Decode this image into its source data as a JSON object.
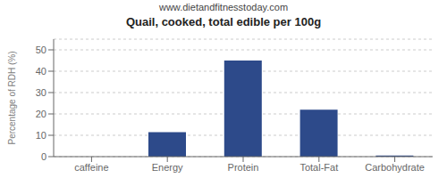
{
  "chart_data": {
    "type": "bar",
    "title": "Quail, cooked, total edible per 100g",
    "subtitle": "www.dietandfitnesstoday.com",
    "categories": [
      "caffeine",
      "Energy",
      "Protein",
      "Total-Fat",
      "Carbohydrate"
    ],
    "values": [
      0,
      11.5,
      45,
      22,
      0.5
    ],
    "color": "#2d4a8a",
    "ylabel": "Percentage of RDH (%)",
    "ylim": [
      0,
      55
    ],
    "yticks": [
      0,
      10,
      20,
      30,
      40,
      50
    ],
    "grid": true
  }
}
